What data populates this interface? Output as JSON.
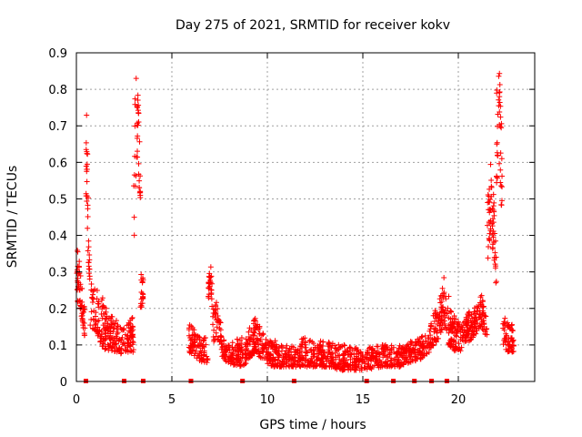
{
  "chart_data": {
    "type": "scatter",
    "title": "Day 275 of 2021, SRMTID for receiver kokv",
    "xlabel": "GPS time / hours",
    "ylabel": "SRMTID / TECUs",
    "xlim": [
      0,
      24
    ],
    "ylim": [
      0,
      0.9
    ],
    "x_ticks": [
      0,
      5,
      10,
      15,
      20
    ],
    "x_tick_labels": [
      "0",
      "5",
      "10",
      "15",
      "20"
    ],
    "y_ticks": [
      0,
      0.1,
      0.2,
      0.3,
      0.4,
      0.5,
      0.6,
      0.7,
      0.8,
      0.9
    ],
    "y_tick_labels": [
      "0",
      "0.1",
      "0.2",
      "0.3",
      "0.4",
      "0.5",
      "0.6",
      "0.7",
      "0.8",
      "0.9"
    ],
    "grid": true,
    "marker_color": "#ff0000",
    "series": [
      {
        "name": "SRMTID",
        "marker": "plus",
        "segments": [
          {
            "x": [
              0.0,
              0.45
            ],
            "envelope": [
              [
                0.0,
                0.16,
                0.3
              ],
              [
                0.05,
                0.2,
                0.36
              ],
              [
                0.15,
                0.22,
                0.34
              ],
              [
                0.25,
                0.18,
                0.3
              ],
              [
                0.35,
                0.14,
                0.22
              ],
              [
                0.45,
                0.12,
                0.2
              ]
            ],
            "count": 60
          },
          {
            "x": [
              0.5,
              0.7
            ],
            "envelope": [
              [
                0.5,
                0.45,
                0.74
              ],
              [
                0.55,
                0.5,
                0.74
              ],
              [
                0.6,
                0.35,
                0.6
              ],
              [
                0.7,
                0.22,
                0.4
              ]
            ],
            "count": 34
          },
          {
            "x": [
              0.7,
              2.4
            ],
            "envelope": [
              [
                0.7,
                0.14,
                0.28
              ],
              [
                1.0,
                0.14,
                0.26
              ],
              [
                1.3,
                0.1,
                0.24
              ],
              [
                1.6,
                0.08,
                0.2
              ],
              [
                1.9,
                0.08,
                0.18
              ],
              [
                2.2,
                0.08,
                0.16
              ],
              [
                2.4,
                0.07,
                0.14
              ]
            ],
            "count": 170
          },
          {
            "x": [
              2.4,
              3.0
            ],
            "envelope": [
              [
                2.4,
                0.08,
                0.16
              ],
              [
                2.7,
                0.08,
                0.16
              ],
              [
                3.0,
                0.08,
                0.18
              ]
            ],
            "count": 60
          },
          {
            "x": [
              3.0,
              3.35
            ],
            "envelope": [
              [
                3.0,
                0.3,
                0.62
              ],
              [
                3.1,
                0.55,
                0.85
              ],
              [
                3.2,
                0.6,
                0.84
              ],
              [
                3.3,
                0.52,
                0.7
              ],
              [
                3.35,
                0.5,
                0.56
              ]
            ],
            "count": 40
          },
          {
            "x": [
              3.35,
              3.5
            ],
            "envelope": [
              [
                3.35,
                0.2,
                0.32
              ],
              [
                3.5,
                0.2,
                0.28
              ]
            ],
            "count": 20
          },
          {
            "x": [
              5.9,
              6.9
            ],
            "envelope": [
              [
                5.9,
                0.08,
                0.16
              ],
              [
                6.2,
                0.07,
                0.14
              ],
              [
                6.5,
                0.05,
                0.12
              ],
              [
                6.9,
                0.05,
                0.12
              ]
            ],
            "count": 90
          },
          {
            "x": [
              6.9,
              7.1
            ],
            "envelope": [
              [
                6.9,
                0.22,
                0.28
              ],
              [
                7.0,
                0.26,
                0.33
              ],
              [
                7.1,
                0.22,
                0.3
              ]
            ],
            "count": 26
          },
          {
            "x": [
              7.1,
              7.6
            ],
            "envelope": [
              [
                7.1,
                0.1,
                0.22
              ],
              [
                7.35,
                0.12,
                0.22
              ],
              [
                7.6,
                0.1,
                0.16
              ]
            ],
            "count": 46
          },
          {
            "x": [
              7.6,
              9.0
            ],
            "envelope": [
              [
                7.6,
                0.06,
                0.12
              ],
              [
                8.0,
                0.05,
                0.1
              ],
              [
                8.5,
                0.04,
                0.12
              ],
              [
                9.0,
                0.05,
                0.12
              ]
            ],
            "count": 130
          },
          {
            "x": [
              9.0,
              10.0
            ],
            "envelope": [
              [
                9.0,
                0.06,
                0.14
              ],
              [
                9.4,
                0.08,
                0.18
              ],
              [
                9.7,
                0.06,
                0.14
              ],
              [
                10.0,
                0.05,
                0.12
              ]
            ],
            "count": 110
          },
          {
            "x": [
              10.0,
              15.0
            ],
            "envelope": [
              [
                10.0,
                0.04,
                0.12
              ],
              [
                11.0,
                0.04,
                0.1
              ],
              [
                12.0,
                0.04,
                0.12
              ],
              [
                13.0,
                0.04,
                0.11
              ],
              [
                14.0,
                0.03,
                0.1
              ],
              [
                15.0,
                0.03,
                0.09
              ]
            ],
            "count": 480
          },
          {
            "x": [
              15.0,
              18.5
            ],
            "envelope": [
              [
                15.0,
                0.03,
                0.09
              ],
              [
                16.0,
                0.04,
                0.1
              ],
              [
                17.0,
                0.04,
                0.1
              ],
              [
                18.0,
                0.06,
                0.12
              ],
              [
                18.5,
                0.08,
                0.14
              ]
            ],
            "count": 300
          },
          {
            "x": [
              18.5,
              19.5
            ],
            "envelope": [
              [
                18.5,
                0.08,
                0.16
              ],
              [
                19.0,
                0.12,
                0.22
              ],
              [
                19.3,
                0.15,
                0.3
              ],
              [
                19.5,
                0.12,
                0.24
              ]
            ],
            "count": 100
          },
          {
            "x": [
              19.5,
              20.3
            ],
            "envelope": [
              [
                19.5,
                0.1,
                0.2
              ],
              [
                19.8,
                0.08,
                0.18
              ],
              [
                20.1,
                0.08,
                0.16
              ],
              [
                20.3,
                0.1,
                0.16
              ]
            ],
            "count": 90
          },
          {
            "x": [
              20.3,
              21.5
            ],
            "envelope": [
              [
                20.3,
                0.1,
                0.18
              ],
              [
                20.8,
                0.12,
                0.2
              ],
              [
                21.2,
                0.15,
                0.24
              ],
              [
                21.5,
                0.12,
                0.2
              ]
            ],
            "count": 130
          },
          {
            "x": [
              21.5,
              22.0
            ],
            "envelope": [
              [
                21.5,
                0.3,
                0.5
              ],
              [
                21.7,
                0.42,
                0.6
              ],
              [
                21.9,
                0.3,
                0.5
              ],
              [
                22.0,
                0.25,
                0.4
              ]
            ],
            "count": 60
          },
          {
            "x": [
              22.0,
              22.3
            ],
            "envelope": [
              [
                22.0,
                0.5,
                0.8
              ],
              [
                22.15,
                0.6,
                0.86
              ],
              [
                22.3,
                0.38,
                0.7
              ]
            ],
            "count": 40
          },
          {
            "x": [
              22.3,
              22.9
            ],
            "envelope": [
              [
                22.3,
                0.1,
                0.2
              ],
              [
                22.6,
                0.08,
                0.16
              ],
              [
                22.9,
                0.08,
                0.16
              ]
            ],
            "count": 60
          }
        ]
      }
    ],
    "baseline_markers_x": [
      0.5,
      2.5,
      3.5,
      6.0,
      8.7,
      11.4,
      15.2,
      16.6,
      17.7,
      18.6,
      19.4
    ]
  }
}
